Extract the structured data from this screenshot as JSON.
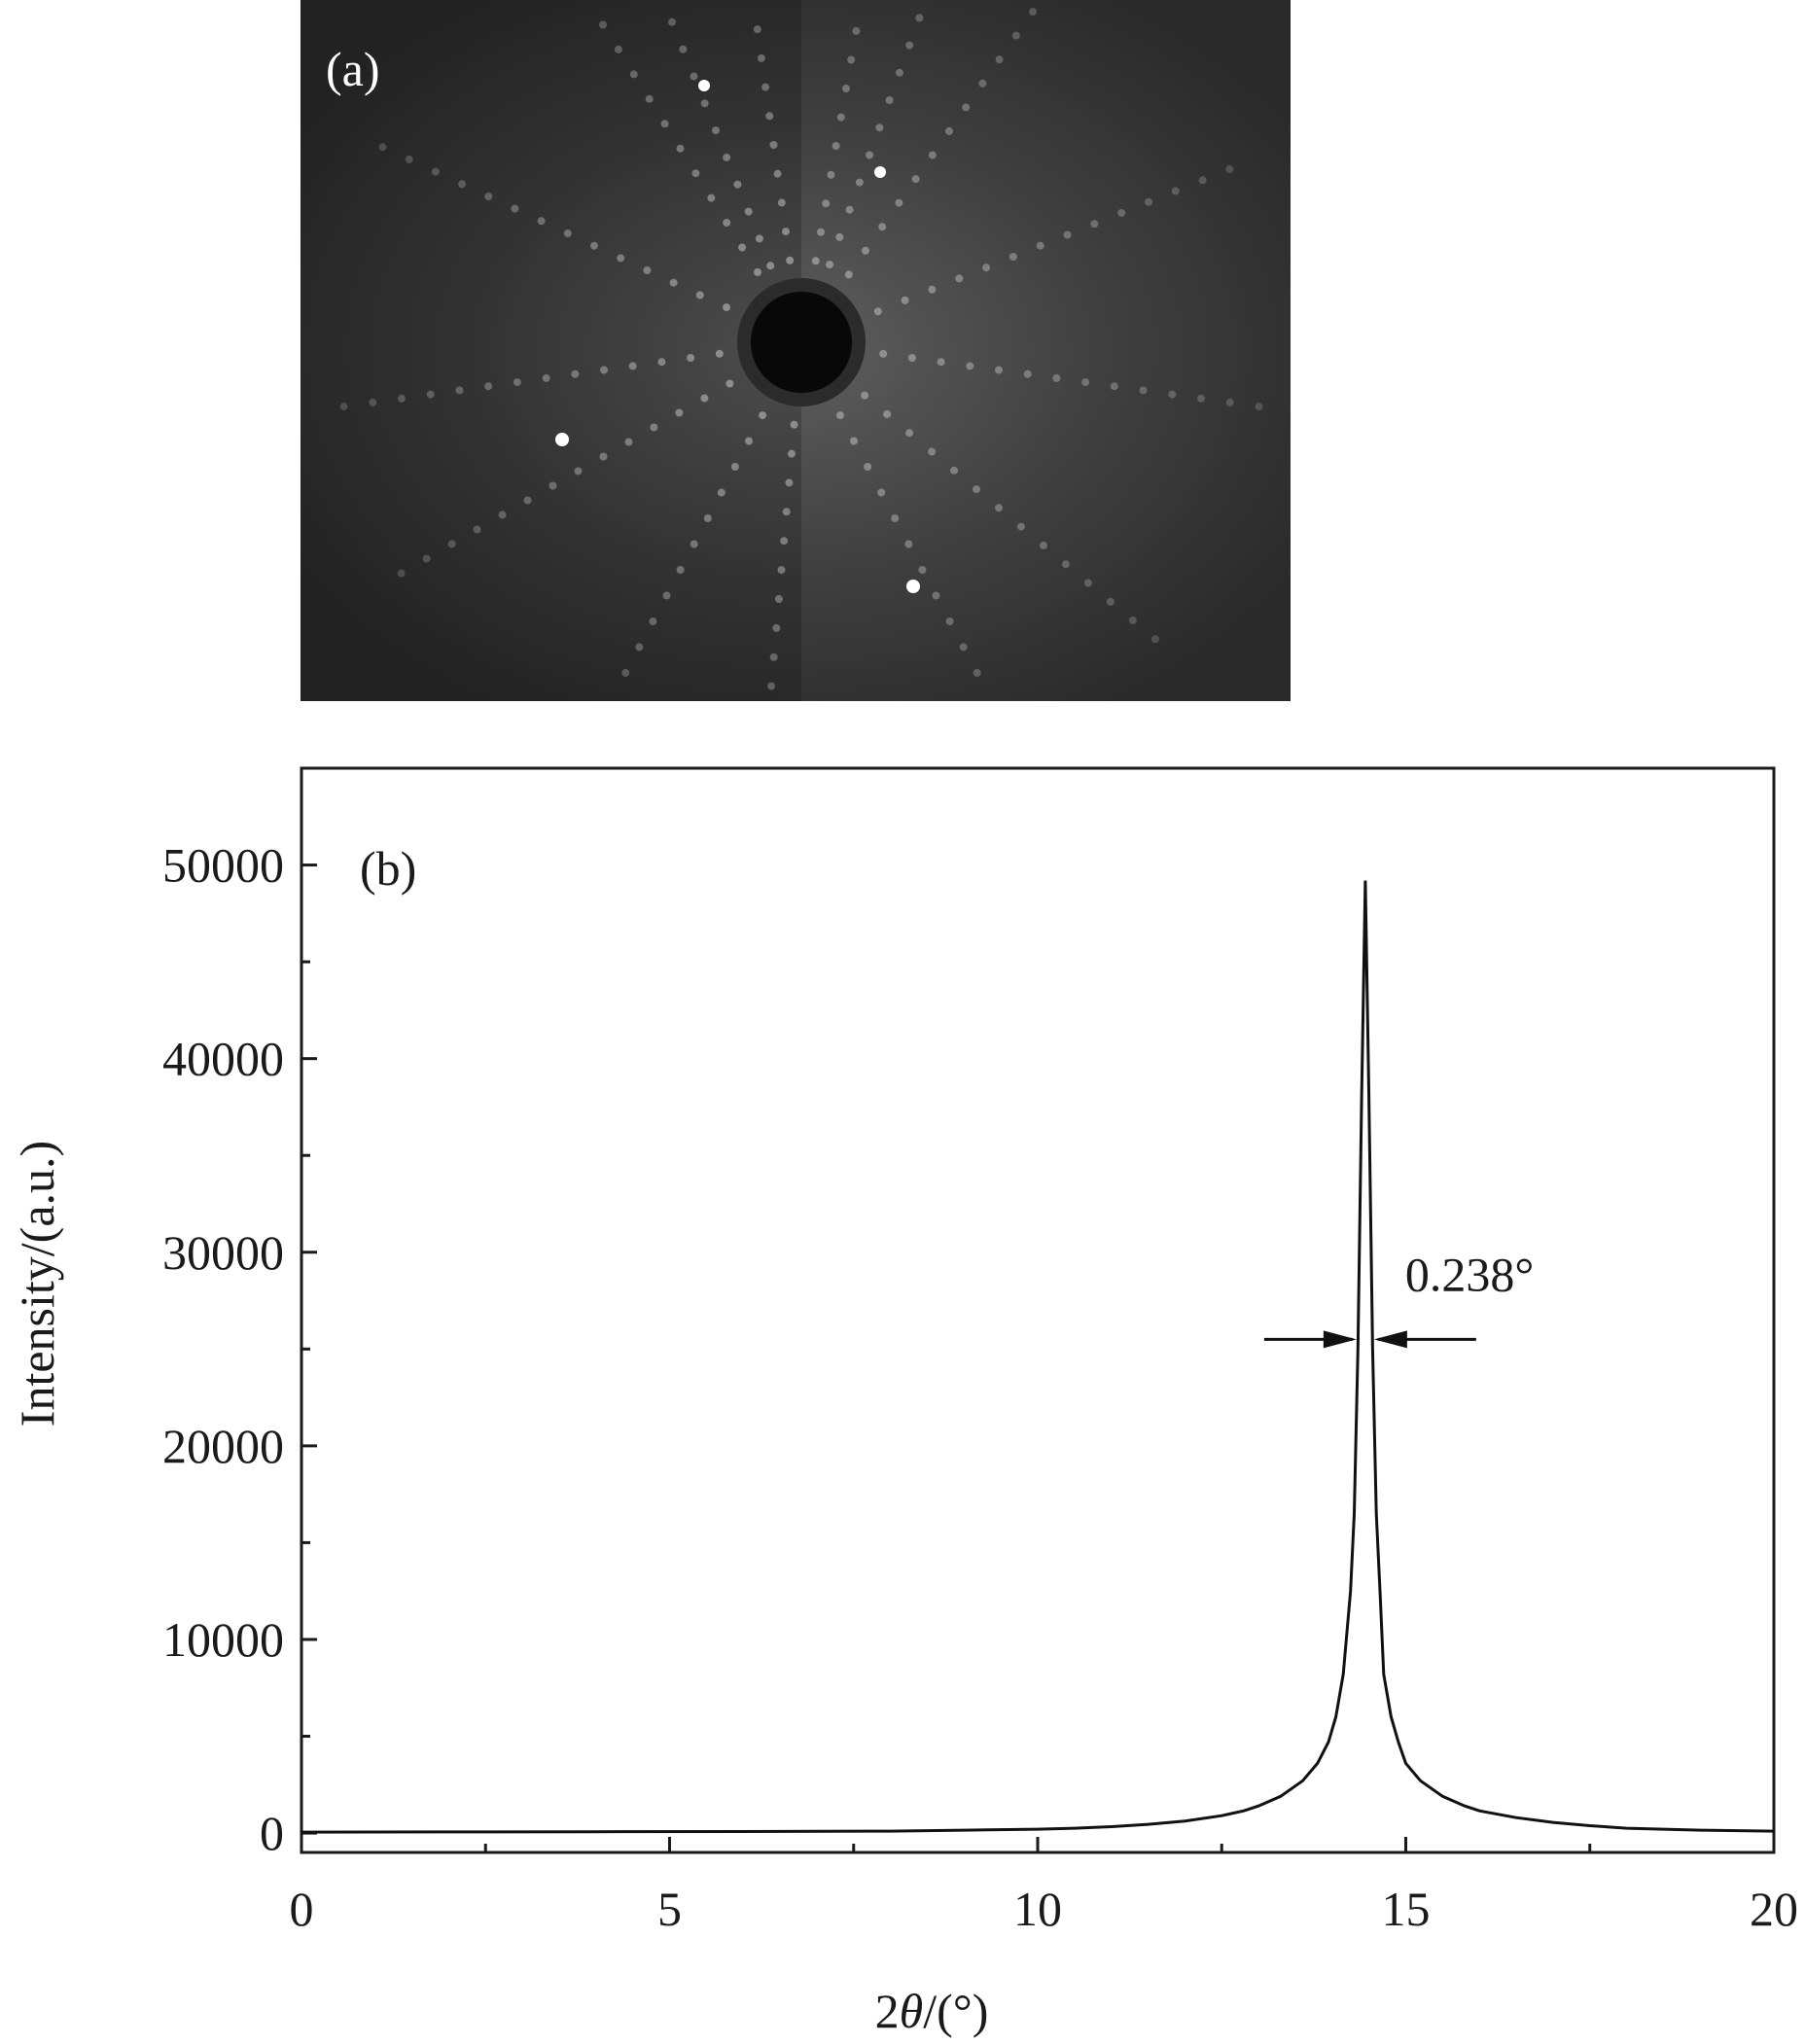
{
  "panel_a": {
    "label": "(a)",
    "description_kind": "laue-diffraction-pattern"
  },
  "chart_data": {
    "type": "line",
    "panel_label": "(b)",
    "title": "",
    "xlabel_prefix": "2",
    "xlabel_symbol": "θ",
    "xlabel_suffix": "/(°)",
    "ylabel": "Intensity/(a.u.)",
    "xlim": [
      0,
      20
    ],
    "ylim": [
      -1000,
      55000
    ],
    "xticks": [
      0,
      5,
      10,
      15,
      20
    ],
    "xtick_labels": [
      "0",
      "5",
      "10",
      "15",
      "20"
    ],
    "yticks": [
      0,
      10000,
      20000,
      30000,
      40000,
      50000
    ],
    "ytick_labels": [
      "0",
      "10000",
      "20000",
      "30000",
      "40000",
      "50000"
    ],
    "grid": false,
    "series": [
      {
        "x": [
          0,
          2,
          4,
          6,
          8,
          9,
          10,
          10.5,
          11,
          11.5,
          12,
          12.5,
          12.8,
          13,
          13.3,
          13.6,
          13.8,
          13.95,
          14.05,
          14.15,
          14.25,
          14.3,
          14.35,
          14.4,
          14.45,
          14.5,
          14.55,
          14.6,
          14.65,
          14.7,
          14.8,
          14.9,
          15.0,
          15.2,
          15.5,
          15.8,
          16,
          16.5,
          17,
          17.5,
          18,
          19,
          20
        ],
        "y": [
          50,
          60,
          70,
          80,
          100,
          150,
          200,
          250,
          330,
          450,
          620,
          900,
          1150,
          1400,
          1900,
          2700,
          3600,
          4700,
          6000,
          8200,
          12500,
          16500,
          25000,
          38000,
          49200,
          38000,
          25000,
          16500,
          12500,
          8200,
          6000,
          4700,
          3600,
          2700,
          1900,
          1400,
          1150,
          800,
          550,
          380,
          250,
          150,
          100
        ]
      }
    ],
    "annotations": [
      {
        "text": "0.238°",
        "kind": "fwhm-arrows",
        "x": 14.45,
        "width": 0.238,
        "y": 25500
      }
    ]
  }
}
